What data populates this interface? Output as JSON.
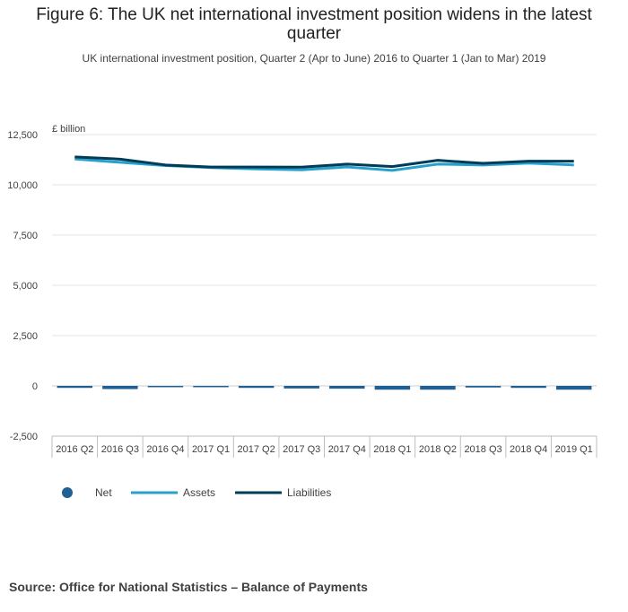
{
  "figure": {
    "title": "Figure 6: The UK net international investment position widens in the latest quarter",
    "subtitle": "UK international investment position, Quarter 2 (Apr to June) 2016 to Quarter 1 (Jan to Mar) 2019",
    "source": "Source: Office for National Statistics – Balance of Payments"
  },
  "colors": {
    "net": "#206095",
    "assets": "#27a0cc",
    "liabilities": "#003c57",
    "grid": "#e6e6e6",
    "axis": "#bebebe"
  },
  "chart_data": {
    "type": "line",
    "title": "Figure 6: The UK net international investment position widens in the latest quarter",
    "subtitle": "UK international investment position, Quarter 2 (Apr to June) 2016 to Quarter 1 (Jan to Mar) 2019",
    "ylabel": "£ billion",
    "xlabel": "",
    "ylim": [
      -2500,
      12500
    ],
    "yticks": [
      12500,
      10000,
      7500,
      5000,
      2500,
      0,
      -2500
    ],
    "ytick_labels": [
      "12,500",
      "10,000",
      "7,500",
      "5,000",
      "2,500",
      "0",
      "-2,500"
    ],
    "grid": true,
    "legend_position": "bottom-left",
    "categories": [
      "2016 Q2",
      "2016 Q3",
      "2016 Q4",
      "2017 Q1",
      "2017 Q2",
      "2017 Q3",
      "2017 Q4",
      "2018 Q1",
      "2018 Q2",
      "2018 Q3",
      "2018 Q4",
      "2019 Q1"
    ],
    "series": [
      {
        "name": "Net",
        "type": "bar",
        "color_key": "net",
        "values": [
          -100,
          -160,
          -20,
          -30,
          -100,
          -130,
          -140,
          -190,
          -190,
          -80,
          -100,
          -190
        ]
      },
      {
        "name": "Assets",
        "type": "line",
        "color_key": "assets",
        "values": [
          11290,
          11120,
          10960,
          10860,
          10790,
          10750,
          10890,
          10720,
          11030,
          10990,
          11080,
          10990
        ]
      },
      {
        "name": "Liabilities",
        "type": "line",
        "color_key": "liabilities",
        "values": [
          11390,
          11280,
          10990,
          10890,
          10890,
          10880,
          11030,
          10910,
          11220,
          11070,
          11180,
          11180
        ]
      }
    ]
  }
}
